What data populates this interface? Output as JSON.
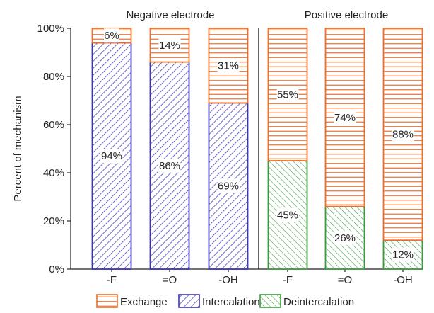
{
  "chart_data": {
    "type": "bar",
    "stacked": true,
    "percent_stacked": true,
    "ylabel": "Percent of mechanism",
    "ylim": [
      0,
      100
    ],
    "yticks": [
      0,
      20,
      40,
      60,
      80,
      100
    ],
    "ytick_suffix": "%",
    "grid": false,
    "legend_position": "bottom",
    "groups": [
      {
        "title": "Negative electrode",
        "categories": [
          "-F",
          "=O",
          "-OH"
        ]
      },
      {
        "title": "Positive electrode",
        "categories": [
          "-F",
          "=O",
          "-OH"
        ]
      }
    ],
    "categories": [
      "-F",
      "=O",
      "-OH",
      "-F",
      "=O",
      "-OH"
    ],
    "series": [
      {
        "name": "Intercalation",
        "values": [
          94,
          86,
          69,
          0,
          0,
          0
        ],
        "labels": [
          "94%",
          "86%",
          "69%",
          "",
          "",
          ""
        ]
      },
      {
        "name": "Deintercalation",
        "values": [
          0,
          0,
          0,
          45,
          26,
          12
        ],
        "labels": [
          "",
          "",
          "",
          "45%",
          "26%",
          "12%"
        ]
      },
      {
        "name": "Exchange",
        "values": [
          6,
          14,
          31,
          55,
          74,
          88
        ],
        "labels": [
          "6%",
          "14%",
          "31%",
          "55%",
          "74%",
          "88%"
        ]
      }
    ],
    "legend_order": [
      "Exchange",
      "Intercalation",
      "Deintercalation"
    ],
    "colors": {
      "Exchange": "#e8702e",
      "Intercalation": "#3b36b4",
      "Deintercalation": "#3a9a3c",
      "axis": "#222222"
    }
  }
}
